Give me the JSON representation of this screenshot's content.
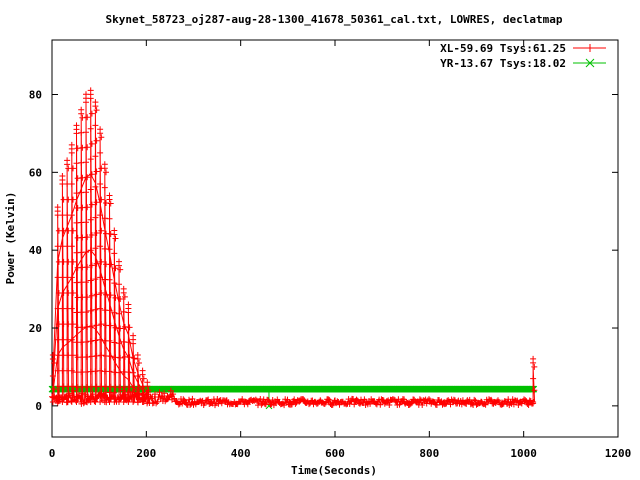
{
  "chart_data": {
    "type": "line",
    "title": "Skynet_58723_oj287-aug-28-1300_41678_50361_cal.txt, LOWRES, declatmap",
    "xlabel": "Time(Seconds)",
    "ylabel": "Power (Kelvin)",
    "xlim": [
      0,
      1200
    ],
    "ylim": [
      -8,
      94
    ],
    "xticks": [
      0,
      200,
      400,
      600,
      800,
      1000,
      1200
    ],
    "yticks": [
      0,
      20,
      40,
      60,
      80
    ],
    "legend_position": "top-right",
    "grid": false,
    "series": [
      {
        "name": "XL-59.69 Tsys:61.25",
        "color": "#ff0000",
        "marker": "plus",
        "scan_peaks": [
          {
            "x": 2,
            "y": 11
          },
          {
            "x": 12,
            "y": 49
          },
          {
            "x": 22,
            "y": 57
          },
          {
            "x": 32,
            "y": 61
          },
          {
            "x": 42,
            "y": 65
          },
          {
            "x": 52,
            "y": 70
          },
          {
            "x": 62,
            "y": 74
          },
          {
            "x": 72,
            "y": 78
          },
          {
            "x": 82,
            "y": 79
          },
          {
            "x": 92,
            "y": 76
          },
          {
            "x": 102,
            "y": 69
          },
          {
            "x": 112,
            "y": 60
          },
          {
            "x": 122,
            "y": 52
          },
          {
            "x": 132,
            "y": 43
          },
          {
            "x": 142,
            "y": 35
          },
          {
            "x": 152,
            "y": 28
          },
          {
            "x": 162,
            "y": 24
          },
          {
            "x": 172,
            "y": 16
          },
          {
            "x": 182,
            "y": 11
          },
          {
            "x": 192,
            "y": 7
          },
          {
            "x": 202,
            "y": 4
          },
          {
            "x": 1020,
            "y": 10
          }
        ],
        "baseline": 1
      },
      {
        "name": "YR-13.67 Tsys:18.02",
        "color": "#00c000",
        "marker": "x",
        "x_range": [
          0,
          1022
        ],
        "y": 4.3,
        "outlier": {
          "x": 460,
          "y": 0
        }
      }
    ]
  }
}
